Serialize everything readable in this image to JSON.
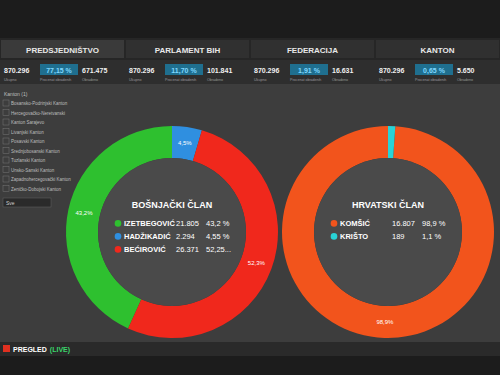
{
  "header": {
    "sections": [
      {
        "title": "PREDSJEDNIŠTVO",
        "total": "870.296",
        "percent": "77,15 %",
        "processed": "671.475"
      },
      {
        "title": "PARLAMENT BIH",
        "total": "870.296",
        "percent": "11,70 %",
        "processed": "101.841"
      },
      {
        "title": "FEDERACIJA",
        "total": "870.296",
        "percent": "1,91 %",
        "processed": "16.631"
      },
      {
        "title": "KANTON",
        "total": "870.296",
        "percent": "0,65 %",
        "processed": "5.650"
      }
    ],
    "sub_labels": [
      "Ukupno",
      "Procenat obrađenih",
      "Obrađeno"
    ]
  },
  "sidebar": {
    "title": "Kanton (1)",
    "items": [
      "Bosansko-Podrinjski Kanton",
      "Hercegovačko-Neretvanski",
      "Kanton Sarajevo",
      "Livanjski Kanton",
      "Posavski Kanton",
      "Srednjobosanski Kanton",
      "Tuzlanski Kanton",
      "Unsko-Sanski Kanton",
      "Zapadnohercegovački Kanton",
      "Zeničko-Dobojski Kanton"
    ],
    "select": "Sve"
  },
  "footer": {
    "title": "PREGLED",
    "status": "(LIVE)"
  },
  "chart_data": [
    {
      "type": "donut",
      "title": "BOŠNJAČKI ČLAN",
      "categories": [
        "IZETBEGOVIĆ",
        "HADŽIKADIĆ",
        "BEĆIROVIĆ"
      ],
      "values": [
        43.2,
        4.55,
        52.25
      ],
      "value_labels": [
        "43,2%",
        "4,5%",
        "52,3%"
      ],
      "legend_labels": [
        "43,2 %",
        "4,55 %",
        "52,25..."
      ],
      "votes": [
        "21.805",
        "2.294",
        "26.371"
      ],
      "colors": [
        "#2ec02f",
        "#2f8fe0",
        "#f0281c"
      ],
      "data_labels": true
    },
    {
      "type": "donut",
      "title": "HRVATSKI ČLAN",
      "categories": [
        "KOMŠIĆ",
        "KRIŠTO"
      ],
      "values": [
        98.9,
        1.1
      ],
      "value_labels": [
        "98,9%",
        null
      ],
      "legend_labels": [
        "98,9 %",
        "1,1 %"
      ],
      "votes": [
        "16.807",
        "189"
      ],
      "colors": [
        "#f2541c",
        "#29d3d6"
      ],
      "data_labels": true
    }
  ]
}
